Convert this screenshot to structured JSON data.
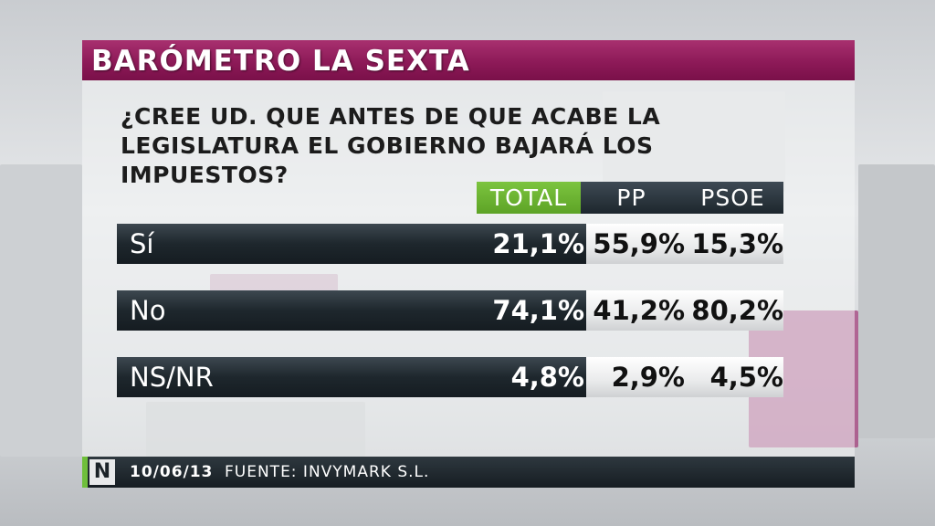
{
  "header": {
    "title": "BARÓMETRO LA SEXTA"
  },
  "question": {
    "line1": "¿CREE UD. QUE ANTES DE QUE ACABE LA",
    "line2": "LEGISLATURA EL GOBIERNO BAJARÁ LOS IMPUESTOS?"
  },
  "columns": {
    "total": "TOTAL",
    "pp": "PP",
    "psoe": "PSOE"
  },
  "rows": [
    {
      "label": "Sí",
      "total": "21,1%",
      "pp": "55,9%",
      "psoe": "15,3%"
    },
    {
      "label": "No",
      "total": "74,1%",
      "pp": "41,2%",
      "psoe": "80,2%"
    },
    {
      "label": "NS/NR",
      "total": "4,8%",
      "pp": "2,9%",
      "psoe": "4,5%"
    }
  ],
  "footer": {
    "logo": "N",
    "date": "10/06/13",
    "source": "FUENTE: INVYMARK S.L."
  },
  "colors": {
    "header": "#8d1a58",
    "total_accent": "#6fbf3b",
    "dark_row": "#1e272d"
  },
  "chart_data": {
    "type": "table",
    "title": "¿CREE UD. QUE ANTES DE QUE ACABE LA LEGISLATURA EL GOBIERNO BAJARÁ LOS IMPUESTOS?",
    "categories": [
      "Sí",
      "No",
      "NS/NR"
    ],
    "series": [
      {
        "name": "TOTAL",
        "values": [
          21.1,
          74.1,
          4.8
        ]
      },
      {
        "name": "PP",
        "values": [
          55.9,
          41.2,
          2.9
        ]
      },
      {
        "name": "PSOE",
        "values": [
          15.3,
          80.2,
          4.5
        ]
      }
    ]
  }
}
